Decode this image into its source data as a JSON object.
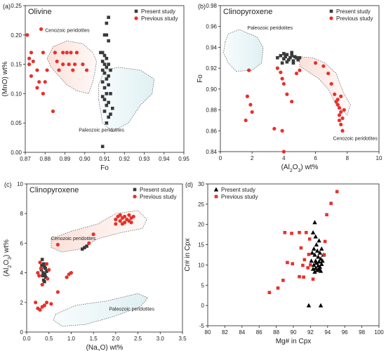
{
  "chart_data": [
    {
      "panel_label": "(a)",
      "type": "scatter",
      "title": "Olivine",
      "xlabel": "Fo",
      "ylabel": "(MnO) wt%",
      "xlim": [
        0.87,
        0.95
      ],
      "ylim": [
        0.0,
        0.25
      ],
      "xticks": [
        "0.87",
        "0.88",
        "0.89",
        "0.90",
        "0.91",
        "0.92",
        "0.93",
        "0.94",
        "0.95"
      ],
      "yticks": [
        "0.00",
        "0.05",
        "0.10",
        "0.15",
        "0.20",
        "0.25"
      ],
      "legend": {
        "position": "top-right",
        "entries": [
          "Present study",
          "Previous study"
        ]
      },
      "series": [
        {
          "name": "Present study",
          "marker": "square",
          "color": "#3a3a3a",
          "points": [
            [
              0.912,
              0.23
            ],
            [
              0.911,
              0.22
            ],
            [
              0.91,
              0.2
            ],
            [
              0.911,
              0.2
            ],
            [
              0.912,
              0.19
            ],
            [
              0.909,
              0.17
            ],
            [
              0.908,
              0.17
            ],
            [
              0.91,
              0.165
            ],
            [
              0.911,
              0.16
            ],
            [
              0.909,
              0.155
            ],
            [
              0.912,
              0.15
            ],
            [
              0.91,
              0.15
            ],
            [
              0.911,
              0.145
            ],
            [
              0.913,
              0.14
            ],
            [
              0.909,
              0.14
            ],
            [
              0.91,
              0.135
            ],
            [
              0.912,
              0.13
            ],
            [
              0.911,
              0.125
            ],
            [
              0.909,
              0.12
            ],
            [
              0.91,
              0.11
            ],
            [
              0.912,
              0.115
            ],
            [
              0.911,
              0.1
            ],
            [
              0.913,
              0.1
            ],
            [
              0.909,
              0.095
            ],
            [
              0.91,
              0.09
            ],
            [
              0.912,
              0.085
            ],
            [
              0.911,
              0.08
            ],
            [
              0.914,
              0.075
            ],
            [
              0.91,
              0.07
            ],
            [
              0.912,
              0.06
            ],
            [
              0.913,
              0.065
            ],
            [
              0.911,
              0.05
            ],
            [
              0.909,
              0.01
            ]
          ]
        },
        {
          "name": "Previous study",
          "marker": "circle",
          "color": "#e8302a",
          "points": [
            [
              0.871,
              0.2
            ],
            [
              0.873,
              0.17
            ],
            [
              0.872,
              0.16
            ],
            [
              0.874,
              0.155
            ],
            [
              0.872,
              0.15
            ],
            [
              0.876,
              0.14
            ],
            [
              0.878,
              0.21
            ],
            [
              0.879,
              0.17
            ],
            [
              0.877,
              0.12
            ],
            [
              0.879,
              0.1
            ],
            [
              0.881,
              0.14
            ],
            [
              0.884,
              0.07
            ],
            [
              0.885,
              0.17
            ],
            [
              0.886,
              0.155
            ],
            [
              0.887,
              0.14
            ],
            [
              0.889,
              0.15
            ],
            [
              0.889,
              0.17
            ],
            [
              0.891,
              0.17
            ],
            [
              0.893,
              0.17
            ],
            [
              0.892,
              0.15
            ],
            [
              0.894,
              0.14
            ],
            [
              0.895,
              0.15
            ],
            [
              0.896,
              0.17
            ],
            [
              0.899,
              0.15
            ],
            [
              0.901,
              0.14
            ],
            [
              0.873,
              0.13
            ],
            [
              0.876,
              0.11
            ],
            [
              0.88,
              0.12
            ]
          ]
        }
      ],
      "annotations": [
        "Cenozoic peridotites",
        "Paleozoic peridotites"
      ]
    },
    {
      "panel_label": "(b)",
      "type": "scatter",
      "title": "Clinopyroxene",
      "xlabel": "(Al2O3) wt%",
      "ylabel": "Fo",
      "xlim": [
        0,
        10
      ],
      "ylim": [
        0.84,
        0.98
      ],
      "xticks": [
        "0",
        "2",
        "4",
        "6",
        "8",
        "10"
      ],
      "yticks": [
        "0.84",
        "0.86",
        "0.88",
        "0.90",
        "0.92",
        "0.94",
        "0.96",
        "0.98"
      ],
      "legend": {
        "position": "top-right",
        "entries": [
          "Present study",
          "Previous study"
        ]
      },
      "series": [
        {
          "name": "Present study",
          "marker": "square",
          "color": "#3a3a3a",
          "points": [
            [
              3.6,
              0.93
            ],
            [
              3.8,
              0.932
            ],
            [
              4.0,
              0.929
            ],
            [
              4.1,
              0.931
            ],
            [
              4.2,
              0.933
            ],
            [
              4.3,
              0.928
            ],
            [
              4.4,
              0.93
            ],
            [
              4.5,
              0.932
            ],
            [
              4.6,
              0.927
            ],
            [
              4.7,
              0.931
            ],
            [
              4.8,
              0.93
            ],
            [
              4.9,
              0.928
            ],
            [
              5.0,
              0.93
            ],
            [
              3.9,
              0.925
            ],
            [
              4.2,
              0.926
            ],
            [
              4.6,
              0.925
            ],
            [
              4.0,
              0.934
            ],
            [
              4.5,
              0.935
            ]
          ]
        },
        {
          "name": "Previous study",
          "marker": "circle",
          "color": "#e8302a",
          "points": [
            [
              1.8,
              0.918
            ],
            [
              1.7,
              0.893
            ],
            [
              1.9,
              0.885
            ],
            [
              2.0,
              0.878
            ],
            [
              1.6,
              0.87
            ],
            [
              3.4,
              0.862
            ],
            [
              3.6,
              0.92
            ],
            [
              3.8,
              0.916
            ],
            [
              3.9,
              0.91
            ],
            [
              4.0,
              0.905
            ],
            [
              4.2,
              0.895
            ],
            [
              4.5,
              0.888
            ],
            [
              4.8,
              0.915
            ],
            [
              3.9,
              0.86
            ],
            [
              4.0,
              0.84
            ],
            [
              5.0,
              0.918
            ],
            [
              6.0,
              0.925
            ],
            [
              6.5,
              0.922
            ],
            [
              6.8,
              0.915
            ],
            [
              7.0,
              0.905
            ],
            [
              7.2,
              0.895
            ],
            [
              7.3,
              0.888
            ],
            [
              7.4,
              0.885
            ],
            [
              7.5,
              0.882
            ],
            [
              7.6,
              0.878
            ],
            [
              7.5,
              0.875
            ],
            [
              7.7,
              0.872
            ],
            [
              7.6,
              0.866
            ],
            [
              7.7,
              0.86
            ],
            [
              7.4,
              0.89
            ],
            [
              7.6,
              0.893
            ],
            [
              7.8,
              0.88
            ],
            [
              7.5,
              0.87
            ]
          ]
        }
      ],
      "annotations": [
        "Paleozoic peridotites",
        "Cenozoic peridotites"
      ]
    },
    {
      "panel_label": "(c)",
      "type": "scatter",
      "title": "Clinopyroxene",
      "xlabel": "(Na2O) wt%",
      "ylabel": "(Al2O3) wt%",
      "xlim": [
        0.0,
        3.5
      ],
      "ylim": [
        0,
        10
      ],
      "xticks": [
        "0.0",
        "0.5",
        "1.0",
        "1.5",
        "2.0",
        "2.5",
        "3.0",
        "3.5"
      ],
      "yticks": [
        "0",
        "2",
        "4",
        "6",
        "8",
        "10"
      ],
      "legend": {
        "position": "top-right",
        "entries": [
          "Present study",
          "Previous study"
        ]
      },
      "series": [
        {
          "name": "Present study",
          "marker": "square",
          "color": "#3a3a3a",
          "points": [
            [
              0.35,
              4.9
            ],
            [
              0.38,
              4.6
            ],
            [
              0.4,
              4.4
            ],
            [
              0.42,
              4.3
            ],
            [
              0.33,
              4.2
            ],
            [
              0.45,
              4.1
            ],
            [
              0.37,
              4.0
            ],
            [
              0.41,
              3.9
            ],
            [
              0.36,
              3.8
            ],
            [
              0.43,
              3.7
            ],
            [
              0.38,
              3.5
            ],
            [
              0.4,
              3.4
            ],
            [
              0.34,
              4.5
            ],
            [
              1.25,
              5.6
            ],
            [
              1.3,
              5.7
            ],
            [
              1.35,
              5.8
            ]
          ]
        },
        {
          "name": "Previous study",
          "marker": "circle",
          "color": "#e8302a",
          "points": [
            [
              0.25,
              4.0
            ],
            [
              0.3,
              4.7
            ],
            [
              0.32,
              4.3
            ],
            [
              0.28,
              3.8
            ],
            [
              0.45,
              4.6
            ],
            [
              0.5,
              4.2
            ],
            [
              0.47,
              3.6
            ],
            [
              0.35,
              3.2
            ],
            [
              0.55,
              1.9
            ],
            [
              0.3,
              1.5
            ],
            [
              0.2,
              2.0
            ],
            [
              0.4,
              1.8
            ],
            [
              0.25,
              1.6
            ],
            [
              0.35,
              1.7
            ],
            [
              0.45,
              2.0
            ],
            [
              0.7,
              2.7
            ],
            [
              0.95,
              3.9
            ],
            [
              1.0,
              4.0
            ],
            [
              0.9,
              3.7
            ],
            [
              0.7,
              5.9
            ],
            [
              1.5,
              6.6
            ],
            [
              2.0,
              7.6
            ],
            [
              2.05,
              7.8
            ],
            [
              2.1,
              7.9
            ],
            [
              2.15,
              7.7
            ],
            [
              2.2,
              7.8
            ],
            [
              2.25,
              7.6
            ],
            [
              2.3,
              7.9
            ],
            [
              2.35,
              7.7
            ],
            [
              2.4,
              7.8
            ],
            [
              2.1,
              7.5
            ],
            [
              2.2,
              7.4
            ],
            [
              2.0,
              7.3
            ],
            [
              2.3,
              7.5
            ],
            [
              2.15,
              7.3
            ],
            [
              2.35,
              7.4
            ],
            [
              1.4,
              6.0
            ]
          ]
        }
      ],
      "annotations": [
        "Cenozoic peridotites",
        "Paleozoic peridotites"
      ]
    },
    {
      "panel_label": "(d)",
      "type": "scatter",
      "title": "",
      "xlabel": "Mg# in Cpx",
      "ylabel": "Cr# in Cpx",
      "xlim": [
        80,
        100
      ],
      "ylim": [
        -5,
        30
      ],
      "xticks": [
        "80",
        "82",
        "84",
        "86",
        "88",
        "90",
        "92",
        "94",
        "96",
        "98",
        "100"
      ],
      "yticks": [
        "-5",
        "0",
        "5",
        "10",
        "15",
        "20",
        "25",
        "30"
      ],
      "legend": {
        "position": "top-left",
        "entries": [
          "Present study",
          "Previous study"
        ]
      },
      "series": [
        {
          "name": "Present study",
          "marker": "triangle",
          "color": "#000000",
          "points": [
            [
              92.5,
              20.5
            ],
            [
              92.3,
              18
            ],
            [
              92.6,
              17
            ],
            [
              92.7,
              15
            ],
            [
              93.0,
              16
            ],
            [
              92.4,
              14
            ],
            [
              92.8,
              13.5
            ],
            [
              93.1,
              13
            ],
            [
              92.5,
              12.5
            ],
            [
              92.9,
              12
            ],
            [
              93.2,
              11.5
            ],
            [
              92.6,
              11
            ],
            [
              93.0,
              10.8
            ],
            [
              92.7,
              10.5
            ],
            [
              93.3,
              10.2
            ],
            [
              92.4,
              10
            ],
            [
              92.9,
              9.8
            ],
            [
              93.1,
              9.5
            ],
            [
              92.6,
              9.2
            ],
            [
              93.0,
              9
            ],
            [
              92.8,
              8.7
            ],
            [
              93.2,
              8.5
            ],
            [
              92.5,
              8.3
            ],
            [
              93.4,
              11
            ],
            [
              93.5,
              12.5
            ],
            [
              93.3,
              14
            ],
            [
              92.2,
              13
            ],
            [
              92.1,
              11
            ],
            [
              92.3,
              9
            ],
            [
              91.8,
              0
            ],
            [
              93.2,
              0
            ]
          ]
        },
        {
          "name": "Previous study",
          "marker": "square",
          "color": "#e8302a",
          "points": [
            [
              87.2,
              3.2
            ],
            [
              88.2,
              4.3
            ],
            [
              88.8,
              6.2
            ],
            [
              89.3,
              10.6
            ],
            [
              89.9,
              10.3
            ],
            [
              89.8,
              17.8
            ],
            [
              89.0,
              18.0
            ],
            [
              90.9,
              14.2
            ],
            [
              90.7,
              18.0
            ],
            [
              91.5,
              18.0
            ],
            [
              91.9,
              16.4
            ],
            [
              91.8,
              12.6
            ],
            [
              91.3,
              11.3
            ],
            [
              91.1,
              9.9
            ],
            [
              90.7,
              7.1
            ],
            [
              91.2,
              7.0
            ],
            [
              91.7,
              9.3
            ],
            [
              92.0,
              10.0
            ],
            [
              93.9,
              22.4
            ],
            [
              94.4,
              25.2
            ],
            [
              95.1,
              28.1
            ],
            [
              93.7,
              15.8
            ],
            [
              92.3,
              6.5
            ],
            [
              93.6,
              12.5
            ]
          ]
        }
      ],
      "annotations": []
    }
  ],
  "colors": {
    "present": "#3a3a3a",
    "previous": "#e8302a",
    "triangle": "#000000",
    "cenozoic_fill": "#fbe1da",
    "paleozoic_fill": "#dff0f3"
  }
}
